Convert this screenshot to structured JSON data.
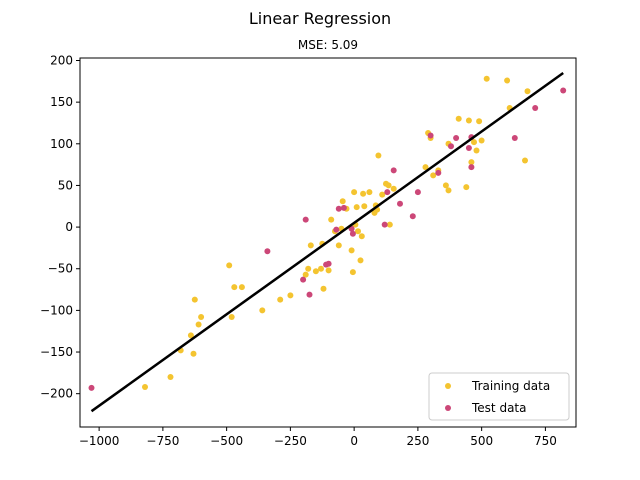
{
  "chart_data": {
    "type": "scatter",
    "title": "Linear Regression",
    "subtitle": "MSE: 5.09",
    "xlabel": "",
    "ylabel": "",
    "xlim": [
      -1075,
      870
    ],
    "ylim": [
      -240,
      203
    ],
    "xticks": [
      -1000,
      -750,
      -500,
      -250,
      0,
      250,
      500,
      750
    ],
    "xtick_labels": [
      "−1000",
      "−750",
      "−500",
      "−250",
      "0",
      "250",
      "500",
      "750"
    ],
    "yticks": [
      -200,
      -150,
      -100,
      -50,
      0,
      50,
      100,
      150,
      200
    ],
    "ytick_labels": [
      "−200",
      "−150",
      "−100",
      "−50",
      "0",
      "50",
      "100",
      "150",
      "200"
    ],
    "grid": false,
    "legend_position": "bottom-right",
    "series": [
      {
        "name": "Training data",
        "kind": "scatter",
        "color": "#f4c430",
        "points": [
          [
            -820,
            -192
          ],
          [
            -720,
            -180
          ],
          [
            -680,
            -148
          ],
          [
            -640,
            -130
          ],
          [
            -630,
            -152
          ],
          [
            -625,
            -87
          ],
          [
            -610,
            -117
          ],
          [
            -600,
            -108
          ],
          [
            -490,
            -46
          ],
          [
            -480,
            -108
          ],
          [
            -470,
            -72
          ],
          [
            -440,
            -72
          ],
          [
            -360,
            -100
          ],
          [
            -290,
            -87
          ],
          [
            -250,
            -82
          ],
          [
            -190,
            -57
          ],
          [
            -180,
            -50
          ],
          [
            -170,
            -22
          ],
          [
            -150,
            -53
          ],
          [
            -130,
            -50
          ],
          [
            -125,
            -20
          ],
          [
            -120,
            -74
          ],
          [
            -100,
            -52
          ],
          [
            -90,
            9
          ],
          [
            -75,
            -5
          ],
          [
            -60,
            -22
          ],
          [
            -50,
            -2
          ],
          [
            -45,
            31
          ],
          [
            -30,
            22
          ],
          [
            -10,
            -28
          ],
          [
            -5,
            -54
          ],
          [
            0,
            42
          ],
          [
            5,
            3
          ],
          [
            10,
            24
          ],
          [
            15,
            -5
          ],
          [
            25,
            -40
          ],
          [
            30,
            -11
          ],
          [
            35,
            40
          ],
          [
            40,
            25
          ],
          [
            60,
            42
          ],
          [
            80,
            17
          ],
          [
            85,
            26
          ],
          [
            90,
            21
          ],
          [
            95,
            86
          ],
          [
            110,
            39
          ],
          [
            125,
            52
          ],
          [
            135,
            50
          ],
          [
            140,
            3
          ],
          [
            155,
            46
          ],
          [
            280,
            72
          ],
          [
            290,
            113
          ],
          [
            300,
            107
          ],
          [
            310,
            62
          ],
          [
            330,
            68
          ],
          [
            360,
            50
          ],
          [
            370,
            100
          ],
          [
            370,
            44
          ],
          [
            410,
            130
          ],
          [
            440,
            48
          ],
          [
            450,
            128
          ],
          [
            460,
            78
          ],
          [
            470,
            102
          ],
          [
            480,
            92
          ],
          [
            490,
            127
          ],
          [
            500,
            104
          ],
          [
            520,
            178
          ],
          [
            600,
            176
          ],
          [
            610,
            143
          ],
          [
            670,
            80
          ],
          [
            680,
            163
          ]
        ]
      },
      {
        "name": "Test data",
        "kind": "scatter",
        "color": "#cc4778",
        "points": [
          [
            -1030,
            -193
          ],
          [
            -340,
            -29
          ],
          [
            -200,
            -63
          ],
          [
            -190,
            9
          ],
          [
            -175,
            -81
          ],
          [
            -110,
            -45
          ],
          [
            -100,
            -44
          ],
          [
            -70,
            -3
          ],
          [
            -60,
            22
          ],
          [
            -40,
            23
          ],
          [
            -10,
            -2
          ],
          [
            -5,
            -8
          ],
          [
            120,
            3
          ],
          [
            130,
            42
          ],
          [
            155,
            68
          ],
          [
            180,
            28
          ],
          [
            230,
            13
          ],
          [
            250,
            42
          ],
          [
            300,
            110
          ],
          [
            330,
            65
          ],
          [
            380,
            97
          ],
          [
            400,
            107
          ],
          [
            450,
            95
          ],
          [
            460,
            108
          ],
          [
            460,
            72
          ],
          [
            630,
            107
          ],
          [
            710,
            143
          ],
          [
            820,
            164
          ]
        ]
      },
      {
        "name": "",
        "kind": "line",
        "color": "#000000",
        "points": [
          [
            -1030,
            -221
          ],
          [
            820,
            185
          ]
        ]
      }
    ]
  }
}
